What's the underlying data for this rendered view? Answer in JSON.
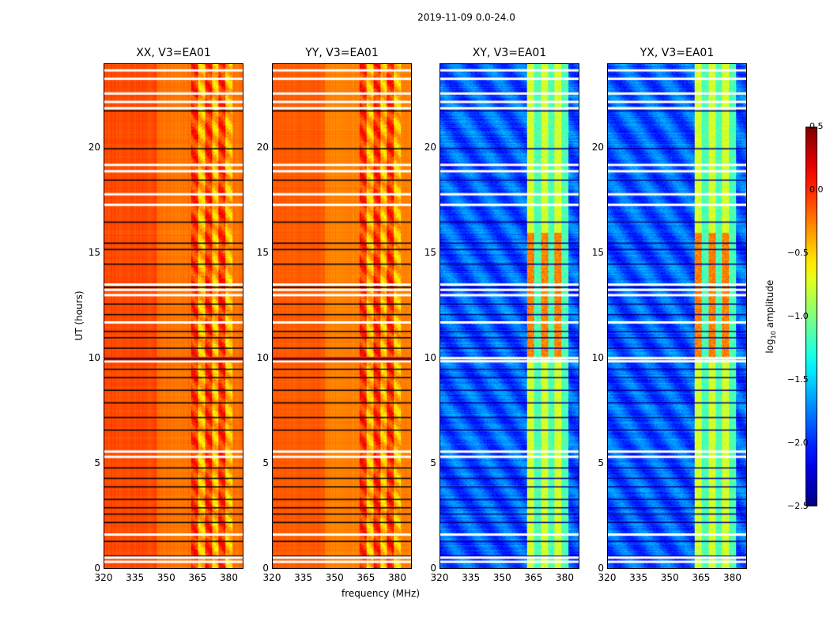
{
  "chart_data": {
    "type": "heatmap",
    "suptitle": "2019-11-09 0.0-24.0",
    "xlabel": "frequency (MHz)",
    "ylabel": "UT (hours)",
    "xlim": [
      320,
      387
    ],
    "ylim": [
      0,
      24
    ],
    "xticks": [
      "320",
      "335",
      "350",
      "365",
      "380"
    ],
    "yticks": [
      "0",
      "5",
      "10",
      "15",
      "20"
    ],
    "panels": [
      {
        "title": "XX, V3=EA01",
        "base": -0.2,
        "band_level": 0.1
      },
      {
        "title": "YY, V3=EA01",
        "base": -0.25,
        "band_level": 0.1
      },
      {
        "title": "XY, V3=EA01",
        "base": -2.05,
        "band_level": -0.6
      },
      {
        "title": "YX, V3=EA01",
        "base": -2.05,
        "band_level": -0.6
      }
    ],
    "band_mhz": [
      362,
      382
    ],
    "flagged_hours": [
      0.3,
      0.5,
      1.6,
      5.3,
      5.55,
      9.85,
      10.0,
      11.7,
      13.0,
      13.25,
      13.5,
      17.3,
      17.8,
      18.9,
      19.2,
      21.9,
      22.2,
      22.6,
      23.3,
      23.7
    ],
    "colorbar": {
      "label": "log₁₀ amplitude",
      "range": [
        -2.5,
        0.5
      ],
      "ticks": [
        "0.5",
        "0.0",
        "−0.5",
        "−1.0",
        "−1.5",
        "−2.0",
        "−2.5"
      ],
      "colormap": "jet"
    }
  }
}
